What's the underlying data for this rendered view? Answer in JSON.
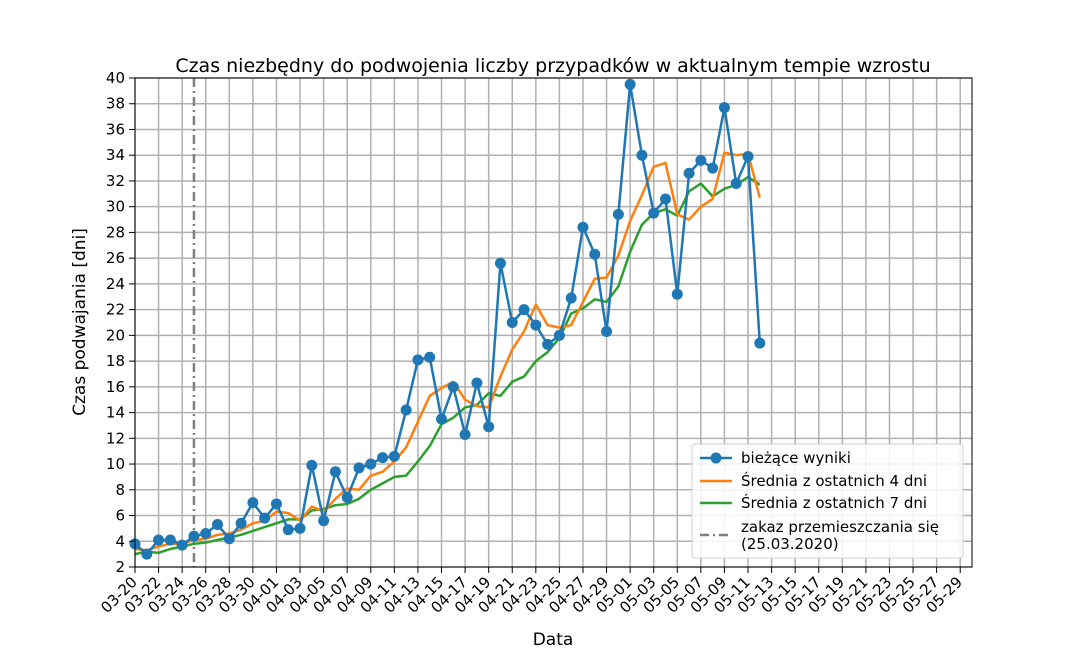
{
  "chart_data": {
    "type": "line",
    "title": "Czas niezbędny do podwojenia liczby przypadków w aktualnym tempie wzrostu",
    "xlabel": "Data",
    "ylabel": "Czas podwajania [dni]",
    "ylim": [
      2,
      40
    ],
    "y_ticks": [
      2,
      4,
      6,
      8,
      10,
      12,
      14,
      16,
      18,
      20,
      22,
      24,
      26,
      28,
      30,
      32,
      34,
      36,
      38,
      40
    ],
    "x_start_date": "2020-03-20",
    "x_end_date": "2020-05-30",
    "x_tick_labels": [
      "03-20",
      "03-22",
      "03-24",
      "03-26",
      "03-28",
      "03-30",
      "04-01",
      "04-03",
      "04-05",
      "04-07",
      "04-09",
      "04-11",
      "04-13",
      "04-15",
      "04-17",
      "04-19",
      "04-21",
      "04-23",
      "04-25",
      "04-27",
      "04-29",
      "05-01",
      "05-03",
      "05-05",
      "05-07",
      "05-09",
      "05-11",
      "05-13",
      "05-15",
      "05-17",
      "05-19",
      "05-21",
      "05-23",
      "05-25",
      "05-27",
      "05-29"
    ],
    "grid": true,
    "legend_position": "lower-right",
    "series": [
      {
        "name": "bieżące wyniki",
        "color": "#1f77b4",
        "marker": "circle",
        "x": [
          "03-20",
          "03-21",
          "03-22",
          "03-23",
          "03-24",
          "03-25",
          "03-26",
          "03-27",
          "03-28",
          "03-29",
          "03-30",
          "03-31",
          "04-01",
          "04-02",
          "04-03",
          "04-04",
          "04-05",
          "04-06",
          "04-07",
          "04-08",
          "04-09",
          "04-10",
          "04-11",
          "04-12",
          "04-13",
          "04-14",
          "04-15",
          "04-16",
          "04-17",
          "04-18",
          "04-19",
          "04-20",
          "04-21",
          "04-22",
          "04-23",
          "04-24",
          "04-25",
          "04-26",
          "04-27",
          "04-28",
          "04-29",
          "04-30",
          "05-01",
          "05-02",
          "05-03",
          "05-04",
          "05-05",
          "05-06",
          "05-07",
          "05-08",
          "05-09",
          "05-10",
          "05-11",
          "05-12"
        ],
        "values": [
          3.8,
          3.0,
          4.1,
          4.1,
          3.7,
          4.4,
          4.6,
          5.3,
          4.2,
          5.4,
          7.0,
          5.8,
          6.9,
          4.9,
          5.0,
          9.9,
          5.6,
          9.4,
          7.4,
          9.7,
          10.0,
          10.5,
          10.6,
          14.2,
          18.1,
          18.3,
          13.5,
          16.0,
          12.3,
          16.3,
          12.9,
          25.6,
          21.0,
          22.0,
          20.8,
          19.3,
          20.0,
          22.9,
          28.4,
          26.3,
          20.3,
          29.4,
          39.5,
          34.0,
          29.5,
          30.6,
          23.2,
          32.6,
          33.6,
          33.0,
          37.7,
          31.8,
          33.9,
          19.4
        ]
      },
      {
        "name": "Średnia z ostatnich 4 dni",
        "color": "#ff7f0e",
        "x": [
          "03-20",
          "03-21",
          "03-22",
          "03-23",
          "03-24",
          "03-25",
          "03-26",
          "03-27",
          "03-28",
          "03-29",
          "03-30",
          "03-31",
          "04-01",
          "04-02",
          "04-03",
          "04-04",
          "04-05",
          "04-06",
          "04-07",
          "04-08",
          "04-09",
          "04-10",
          "04-11",
          "04-12",
          "04-13",
          "04-14",
          "04-15",
          "04-16",
          "04-17",
          "04-18",
          "04-19",
          "04-20",
          "04-21",
          "04-22",
          "04-23",
          "04-24",
          "04-25",
          "04-26",
          "04-27",
          "04-28",
          "04-29",
          "04-30",
          "05-01",
          "05-02",
          "05-03",
          "05-04",
          "05-05",
          "05-06",
          "05-07",
          "05-08",
          "05-09",
          "05-10",
          "05-11",
          "05-12"
        ],
        "values": [
          3.4,
          3.3,
          3.6,
          3.8,
          3.8,
          4.1,
          4.2,
          4.5,
          4.6,
          4.9,
          5.4,
          5.6,
          6.3,
          6.2,
          5.6,
          6.7,
          6.3,
          7.3,
          8.1,
          8.0,
          9.1,
          9.4,
          10.2,
          11.3,
          13.3,
          15.3,
          15.9,
          16.4,
          15.0,
          14.5,
          14.4,
          16.8,
          18.9,
          20.3,
          22.4,
          20.8,
          20.6,
          20.8,
          22.6,
          24.4,
          24.5,
          26.2,
          28.9,
          30.9,
          33.1,
          33.4,
          29.4,
          29.0,
          30.0,
          30.6,
          34.2,
          34.0,
          34.1,
          30.7
        ]
      },
      {
        "name": "Średnia z ostatnich 7 dni",
        "color": "#2ca02c",
        "x": [
          "03-20",
          "03-21",
          "03-22",
          "03-23",
          "03-24",
          "03-25",
          "03-26",
          "03-27",
          "03-28",
          "03-29",
          "03-30",
          "03-31",
          "04-01",
          "04-02",
          "04-03",
          "04-04",
          "04-05",
          "04-06",
          "04-07",
          "04-08",
          "04-09",
          "04-10",
          "04-11",
          "04-12",
          "04-13",
          "04-14",
          "04-15",
          "04-16",
          "04-17",
          "04-18",
          "04-19",
          "04-20",
          "04-21",
          "04-22",
          "04-23",
          "04-24",
          "04-25",
          "04-26",
          "04-27",
          "04-28",
          "04-29",
          "04-30",
          "05-01",
          "05-02",
          "05-03",
          "05-04",
          "05-05",
          "05-06",
          "05-07",
          "05-08",
          "05-09",
          "05-10",
          "05-11",
          "05-12"
        ],
        "values": [
          3.0,
          3.2,
          3.1,
          3.4,
          3.6,
          3.8,
          3.9,
          4.1,
          4.3,
          4.5,
          4.8,
          5.1,
          5.4,
          5.7,
          5.7,
          6.4,
          6.5,
          6.8,
          6.9,
          7.3,
          8.0,
          8.5,
          9.0,
          9.1,
          10.2,
          11.4,
          13.1,
          13.6,
          14.4,
          14.6,
          15.5,
          15.3,
          16.4,
          16.8,
          18.0,
          18.7,
          19.8,
          21.7,
          22.1,
          22.8,
          22.6,
          23.8,
          26.5,
          28.6,
          29.5,
          29.8,
          29.3,
          31.2,
          31.8,
          30.8,
          31.4,
          31.7,
          32.3,
          31.7
        ]
      }
    ],
    "vertical_line": {
      "name": "zakaz przemieszczania się\n(25.03.2020)",
      "x": "03-25",
      "color": "#808080",
      "style": "dash-dot"
    }
  }
}
